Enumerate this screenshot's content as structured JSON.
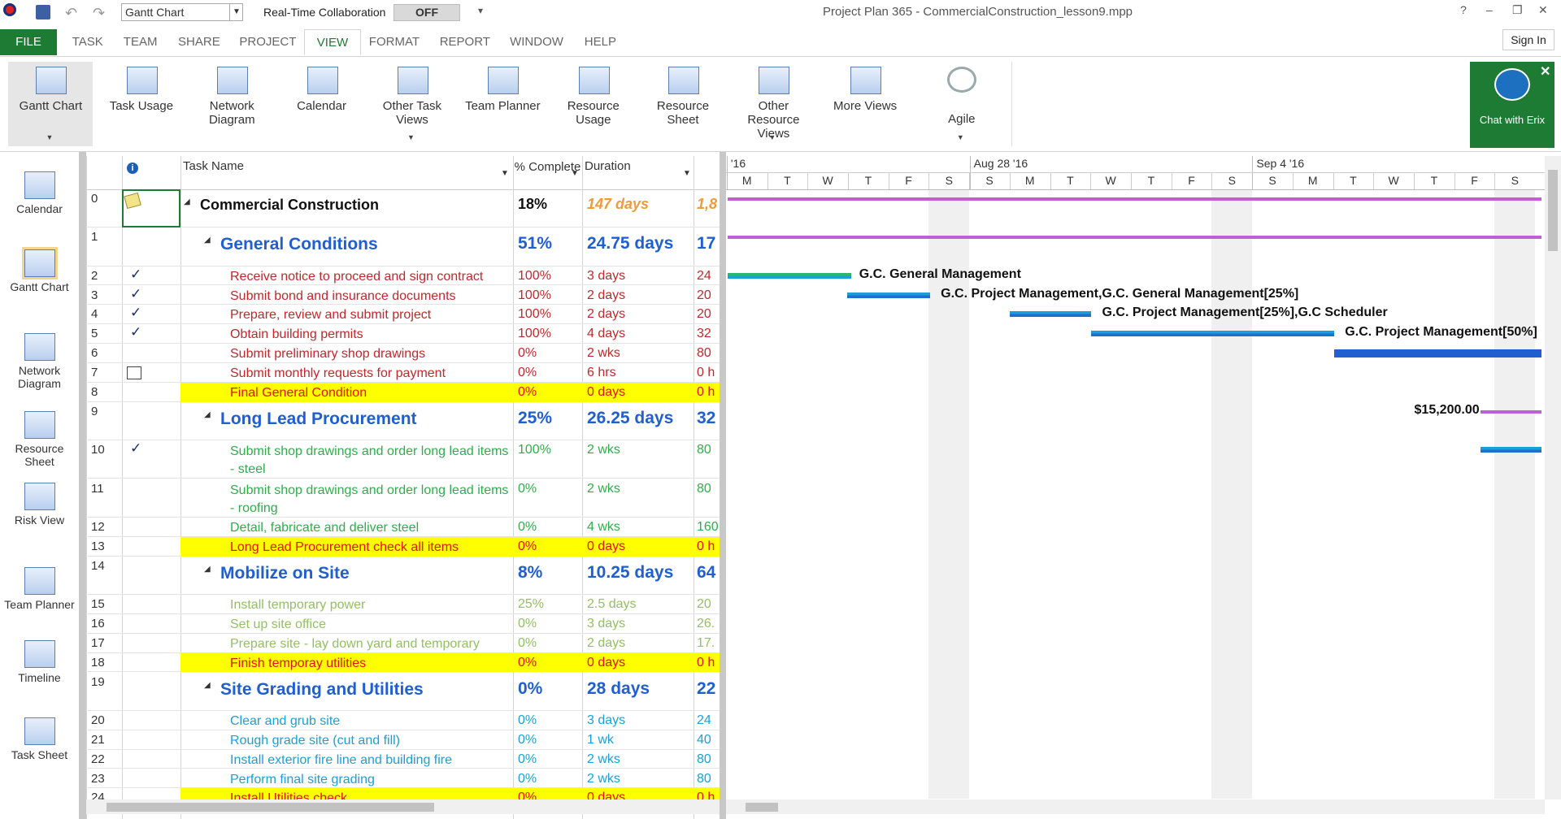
{
  "titlebar": {
    "view_select": "Gantt Chart",
    "collab_label": "Real-Time Collaboration",
    "collab_state": "OFF",
    "title": "Project Plan 365 - CommercialConstruction_lesson9.mpp"
  },
  "menu": {
    "tabs": [
      "FILE",
      "TASK",
      "TEAM",
      "SHARE",
      "PROJECT",
      "VIEW",
      "FORMAT",
      "REPORT",
      "WINDOW",
      "HELP"
    ],
    "sign_in": "Sign In"
  },
  "ribbon": {
    "buttons": [
      "Gantt Chart",
      "Task Usage",
      "Network Diagram",
      "Calendar",
      "Other Task Views",
      "Team Planner",
      "Resource Usage",
      "Resource Sheet",
      "Other Resource Views",
      "More Views",
      "Agile"
    ],
    "chat": "Chat with Erix"
  },
  "sidebar": [
    "Calendar",
    "Gantt Chart",
    "Network Diagram",
    "Resource Sheet",
    "Risk View",
    "Team Planner",
    "Timeline",
    "Task Sheet"
  ],
  "table": {
    "columns": [
      "Task Name",
      "% Complete",
      "Duration"
    ],
    "rows": [
      {
        "id": "0",
        "name": "Commercial Construction",
        "pct": "18%",
        "duration": "147 days",
        "cost": "1,8",
        "summary": true,
        "color": "#111111",
        "indicator": "note"
      },
      {
        "id": "1",
        "name": "General Conditions",
        "pct": "51%",
        "duration": "24.75 days",
        "cost": "17",
        "summary": true,
        "color": "#1f5fd0"
      },
      {
        "id": "2",
        "name": "Receive notice to proceed and sign contract",
        "pct": "100%",
        "duration": "3 days",
        "cost": "24",
        "color": "#c0282a",
        "indicator": "check"
      },
      {
        "id": "3",
        "name": "Submit bond and insurance documents",
        "pct": "100%",
        "duration": "2 days",
        "cost": "20",
        "color": "#c0282a",
        "indicator": "check"
      },
      {
        "id": "4",
        "name": "Prepare, review and submit project",
        "pct": "100%",
        "duration": "2 days",
        "cost": "20",
        "color": "#c0282a",
        "indicator": "check"
      },
      {
        "id": "5",
        "name": "Obtain building permits",
        "pct": "100%",
        "duration": "4 days",
        "cost": "32",
        "color": "#c0282a",
        "indicator": "check"
      },
      {
        "id": "6",
        "name": "Submit preliminary shop drawings",
        "pct": "0%",
        "duration": "2 wks",
        "cost": "80",
        "color": "#c0282a"
      },
      {
        "id": "7",
        "name": "Submit monthly requests for payment",
        "pct": "0%",
        "duration": "6 hrs",
        "cost": "0 h",
        "color": "#c0282a",
        "indicator": "recurring"
      },
      {
        "id": "8",
        "name": "Final General Condition",
        "pct": "0%",
        "duration": "0 days",
        "cost": "0 h",
        "milestone": true,
        "color": "#e0140f"
      },
      {
        "id": "9",
        "name": "Long Lead Procurement",
        "pct": "25%",
        "duration": "26.25 days",
        "cost": "32",
        "summary": true,
        "color": "#1f5fd0"
      },
      {
        "id": "10",
        "name": "Submit shop drawings and order long lead items - steel",
        "pct": "100%",
        "duration": "2 wks",
        "cost": "80",
        "color": "#2eae4a",
        "indicator": "check",
        "wrap": true
      },
      {
        "id": "11",
        "name": "Submit shop drawings and order long lead items - roofing",
        "pct": "0%",
        "duration": "2 wks",
        "cost": "80",
        "color": "#2eae4a",
        "wrap": true
      },
      {
        "id": "12",
        "name": "Detail, fabricate and deliver steel",
        "pct": "0%",
        "duration": "4 wks",
        "cost": "160",
        "color": "#2eae4a"
      },
      {
        "id": "13",
        "name": "Long Lead Procurement check all items",
        "pct": "0%",
        "duration": "0 days",
        "cost": "0 h",
        "milestone": true,
        "color": "#e0140f"
      },
      {
        "id": "14",
        "name": "Mobilize on Site",
        "pct": "8%",
        "duration": "10.25 days",
        "cost": "64",
        "summary": true,
        "color": "#1f5fd0"
      },
      {
        "id": "15",
        "name": "Install temporary power",
        "pct": "25%",
        "duration": "2.5 days",
        "cost": "20",
        "color": "#93c062"
      },
      {
        "id": "16",
        "name": "Set up site office",
        "pct": "0%",
        "duration": "3 days",
        "cost": "26.",
        "color": "#93c062"
      },
      {
        "id": "17",
        "name": "Prepare site - lay down yard and temporary",
        "pct": "0%",
        "duration": "2 days",
        "cost": "17.",
        "color": "#93c062"
      },
      {
        "id": "18",
        "name": "Finish temporay utilities",
        "pct": "0%",
        "duration": "0 days",
        "cost": "0 h",
        "milestone": true,
        "color": "#e0140f"
      },
      {
        "id": "19",
        "name": "Site Grading and Utilities",
        "pct": "0%",
        "duration": "28 days",
        "cost": "22",
        "summary": true,
        "color": "#1f5fd0"
      },
      {
        "id": "20",
        "name": "Clear and grub site",
        "pct": "0%",
        "duration": "3 days",
        "cost": "24",
        "color": "#1aa0d8"
      },
      {
        "id": "21",
        "name": "Rough grade site (cut and fill)",
        "pct": "0%",
        "duration": "1 wk",
        "cost": "40",
        "color": "#1aa0d8"
      },
      {
        "id": "22",
        "name": "Install exterior fire line and building fire",
        "pct": "0%",
        "duration": "2 wks",
        "cost": "80",
        "color": "#1aa0d8"
      },
      {
        "id": "23",
        "name": "Perform final site grading",
        "pct": "0%",
        "duration": "2 wks",
        "cost": "80",
        "color": "#1aa0d8"
      },
      {
        "id": "24",
        "name": "Install Utilities check",
        "pct": "0%",
        "duration": "0 days",
        "cost": "0 h",
        "milestone": true,
        "color": "#e0140f"
      }
    ]
  },
  "gantt": {
    "weeks": [
      "'16",
      "Aug 28 '16",
      "Sep 4 '16"
    ],
    "days": [
      "M",
      "T",
      "W",
      "T",
      "F",
      "S",
      "S",
      "M",
      "T",
      "W",
      "T",
      "F",
      "S",
      "S",
      "M",
      "T",
      "W",
      "T",
      "F",
      "S"
    ],
    "labels": [
      "G.C. General Management",
      "G.C. Project Management,G.C. General Management[25%]",
      "G.C. Project Management[25%],G.C Scheduler",
      "G.C. Project Management[50%]",
      "$15,200.00"
    ]
  }
}
